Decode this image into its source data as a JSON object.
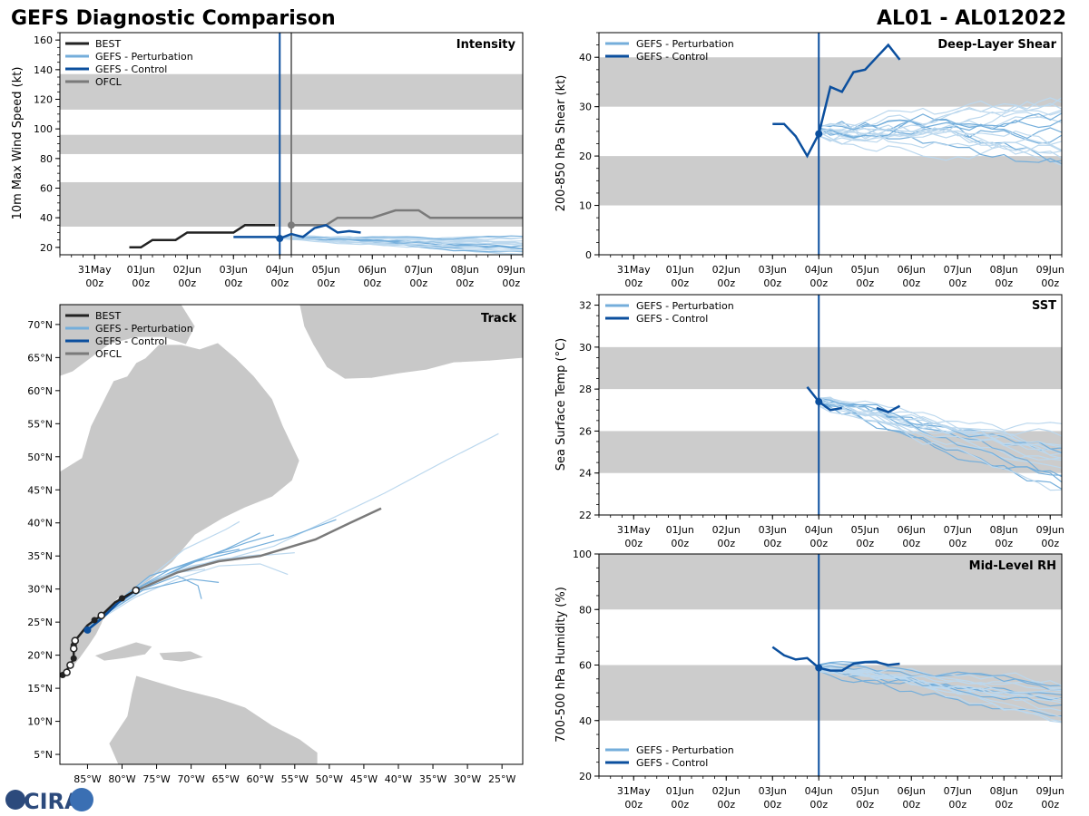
{
  "header": {
    "title_left": "GEFS Diagnostic Comparison",
    "title_right": "AL01 - AL012022"
  },
  "logo": {
    "text": "CIRA"
  },
  "colors": {
    "best": "#222222",
    "pert": "#74aedb",
    "pert_light": "#bcd8ee",
    "control": "#0b4f9e",
    "ofcl": "#7a7a7a",
    "band": "#cccccc",
    "land": "#c8c8c8"
  },
  "legend_labels": {
    "best": "BEST",
    "pert": "GEFS - Perturbation",
    "control": "GEFS - Control",
    "ofcl": "OFCL"
  },
  "time_ticks": [
    {
      "t": 0,
      "day": "31May",
      "hour": "00z"
    },
    {
      "t": 1,
      "day": "01Jun",
      "hour": "00z"
    },
    {
      "t": 2,
      "day": "02Jun",
      "hour": "00z"
    },
    {
      "t": 3,
      "day": "03Jun",
      "hour": "00z"
    },
    {
      "t": 4,
      "day": "04Jun",
      "hour": "00z"
    },
    {
      "t": 5,
      "day": "05Jun",
      "hour": "00z"
    },
    {
      "t": 6,
      "day": "06Jun",
      "hour": "00z"
    },
    {
      "t": 7,
      "day": "07Jun",
      "hour": "00z"
    },
    {
      "t": 8,
      "day": "08Jun",
      "hour": "00z"
    },
    {
      "t": 9,
      "day": "09Jun",
      "hour": "00z"
    }
  ],
  "chart_data": [
    {
      "id": "intensity",
      "type": "line",
      "title": "Intensity",
      "ylabel": "10m Max Wind Speed (kt)",
      "xlim": [
        -0.75,
        9.25
      ],
      "ylim": [
        15,
        165
      ],
      "yticks": [
        20,
        40,
        60,
        80,
        100,
        120,
        140,
        160
      ],
      "bands": [
        [
          34,
          64
        ],
        [
          83,
          96
        ],
        [
          113,
          137
        ]
      ],
      "init_time": 4.0,
      "ofcl_time": 4.25,
      "series": [
        {
          "name": "BEST",
          "role": "best",
          "points": [
            [
              0.75,
              20
            ],
            [
              1,
              20
            ],
            [
              1.25,
              25
            ],
            [
              1.5,
              25
            ],
            [
              1.75,
              25
            ],
            [
              2,
              30
            ],
            [
              2.25,
              30
            ],
            [
              2.5,
              30
            ],
            [
              2.75,
              30
            ],
            [
              3,
              30
            ],
            [
              3.25,
              35
            ],
            [
              3.5,
              35
            ],
            [
              3.75,
              35
            ],
            [
              3.9,
              35
            ]
          ]
        },
        {
          "name": "OFCL",
          "role": "ofcl",
          "points": [
            [
              4.25,
              35
            ],
            [
              4.5,
              35
            ],
            [
              5,
              35
            ],
            [
              5.25,
              40
            ],
            [
              6,
              40
            ],
            [
              6.5,
              45
            ],
            [
              7,
              45
            ],
            [
              7.25,
              40
            ],
            [
              8,
              40
            ],
            [
              9.25,
              40
            ]
          ]
        },
        {
          "name": "GEFS - Control",
          "role": "control",
          "points": [
            [
              3,
              27
            ],
            [
              3.5,
              27
            ],
            [
              3.9,
              27
            ],
            [
              4,
              26
            ],
            [
              4.25,
              29
            ],
            [
              4.5,
              27
            ],
            [
              4.75,
              33
            ],
            [
              5,
              35
            ],
            [
              5.25,
              30
            ],
            [
              5.5,
              31
            ],
            [
              5.75,
              30
            ]
          ]
        },
        {
          "name": "GEFS - Perturbation",
          "role": "pert_ensemble",
          "members": 18,
          "t_start": 4.0,
          "t_end": 9.25,
          "start": 27,
          "end": 22,
          "spread": 6
        }
      ],
      "markers": [
        {
          "t": 4.0,
          "v": 26,
          "role": "control"
        },
        {
          "t": 4.25,
          "v": 35,
          "role": "ofcl"
        }
      ]
    },
    {
      "id": "shear",
      "type": "line",
      "title": "Deep-Layer Shear",
      "ylabel": "200-850 hPa Shear (kt)",
      "xlim": [
        -0.75,
        9.25
      ],
      "ylim": [
        0,
        45
      ],
      "yticks": [
        0,
        10,
        20,
        30,
        40
      ],
      "bands": [
        [
          10,
          20
        ],
        [
          30,
          40
        ]
      ],
      "init_time": 4.0,
      "series": [
        {
          "name": "GEFS - Control",
          "role": "control",
          "points": [
            [
              3,
              26.5
            ],
            [
              3.25,
              26.5
            ],
            [
              3.5,
              24
            ],
            [
              3.75,
              20
            ],
            [
              4,
              24.5
            ],
            [
              4.25,
              34
            ],
            [
              4.5,
              33
            ],
            [
              4.75,
              37
            ],
            [
              5,
              37.5
            ],
            [
              5.25,
              40
            ],
            [
              5.5,
              42.5
            ],
            [
              5.75,
              39.5
            ]
          ]
        },
        {
          "name": "GEFS - Perturbation",
          "role": "pert_ensemble",
          "members": 18,
          "t_start": 4.0,
          "t_end": 9.25,
          "start": 25,
          "end": 24,
          "spread": 9
        }
      ],
      "markers": [
        {
          "t": 4.0,
          "v": 24.5,
          "role": "control"
        }
      ]
    },
    {
      "id": "sst",
      "type": "line",
      "title": "SST",
      "ylabel": "Sea Surface Temp (°C)",
      "xlim": [
        -0.75,
        9.25
      ],
      "ylim": [
        22,
        32.5
      ],
      "yticks": [
        22,
        24,
        26,
        28,
        30,
        32
      ],
      "bands": [
        [
          24,
          26
        ],
        [
          28,
          30
        ]
      ],
      "init_time": 4.0,
      "series": [
        {
          "name": "GEFS - Control",
          "role": "control",
          "points": [
            [
              3.75,
              28.1
            ],
            [
              4,
              27.4
            ],
            [
              4.25,
              27
            ],
            [
              4.5,
              27.1
            ]
          ]
        },
        {
          "name": "GEFS - Control",
          "role": "control",
          "points": [
            [
              5.25,
              27.1
            ],
            [
              5.5,
              26.9
            ],
            [
              5.75,
              27.2
            ]
          ]
        },
        {
          "name": "GEFS - Perturbation",
          "role": "pert_ensemble",
          "members": 18,
          "t_start": 4.0,
          "t_end": 9.25,
          "start": 27.4,
          "end": 24.6,
          "spread": 1.6
        }
      ],
      "markers": [
        {
          "t": 4.0,
          "v": 27.4,
          "role": "control"
        }
      ]
    },
    {
      "id": "rh",
      "type": "line",
      "title": "Mid-Level RH",
      "ylabel": "700-500 hPa Humidity (%)",
      "xlim": [
        -0.75,
        9.25
      ],
      "ylim": [
        20,
        100
      ],
      "yticks": [
        20,
        40,
        60,
        80,
        100
      ],
      "bands": [
        [
          40,
          60
        ],
        [
          80,
          100
        ]
      ],
      "init_time": 4.0,
      "series": [
        {
          "name": "GEFS - Control",
          "role": "control",
          "points": [
            [
              3,
              66.5
            ],
            [
              3.25,
              63.5
            ],
            [
              3.5,
              62
            ],
            [
              3.75,
              62.5
            ],
            [
              4,
              59
            ],
            [
              4.25,
              58
            ],
            [
              4.5,
              58
            ],
            [
              4.75,
              60.5
            ],
            [
              5,
              61
            ],
            [
              5.25,
              61
            ],
            [
              5.5,
              60
            ],
            [
              5.75,
              60.5
            ]
          ]
        },
        {
          "name": "GEFS - Perturbation",
          "role": "pert_ensemble",
          "members": 18,
          "t_start": 4.0,
          "t_end": 9.25,
          "start": 59,
          "end": 46,
          "spread": 9
        }
      ],
      "markers": [
        {
          "t": 4.0,
          "v": 59,
          "role": "control"
        }
      ]
    },
    {
      "id": "track",
      "type": "scatter",
      "title": "Track",
      "xlim": [
        -89,
        -22
      ],
      "ylim": [
        3.5,
        73
      ],
      "xticks": [
        -85,
        -80,
        -75,
        -70,
        -65,
        -60,
        -55,
        -50,
        -45,
        -40,
        -35,
        -30,
        -25
      ],
      "xtick_labels": [
        "85°W",
        "80°W",
        "75°W",
        "70°W",
        "65°W",
        "60°W",
        "55°W",
        "50°W",
        "45°W",
        "40°W",
        "35°W",
        "30°W",
        "25°W"
      ],
      "yticks": [
        5,
        10,
        15,
        20,
        25,
        30,
        35,
        40,
        45,
        50,
        55,
        60,
        65,
        70
      ],
      "ytick_labels": [
        "5°N",
        "10°N",
        "15°N",
        "20°N",
        "25°N",
        "30°N",
        "35°N",
        "40°N",
        "45°N",
        "50°N",
        "55°N",
        "60°N",
        "65°N",
        "70°N"
      ],
      "best_track": [
        [
          -88.5,
          17.2
        ],
        [
          -88.2,
          17.5
        ],
        [
          -87.5,
          18.5
        ],
        [
          -87.0,
          19.5
        ],
        [
          -87.0,
          20.5
        ],
        [
          -87.0,
          21.5
        ],
        [
          -86.8,
          22.2
        ],
        [
          -85.0,
          24.5
        ],
        [
          -84.0,
          25.3
        ],
        [
          -83.0,
          26.0
        ],
        [
          -81.0,
          28.0
        ],
        [
          -80.0,
          28.6
        ],
        [
          -78.0,
          29.8
        ]
      ],
      "best_open_points": [
        [
          -88.0,
          17.4
        ],
        [
          -87.5,
          18.5
        ],
        [
          -87.0,
          21.0
        ],
        [
          -86.8,
          22.2
        ],
        [
          -83.0,
          26.0
        ],
        [
          -78.0,
          29.8
        ]
      ],
      "best_filled_points": [
        [
          -88.6,
          17.0
        ],
        [
          -87.0,
          19.5
        ],
        [
          -87.0,
          21.5
        ],
        [
          -84.0,
          25.3
        ],
        [
          -80.0,
          28.6
        ]
      ],
      "ofcl_track": [
        [
          -80.5,
          28.4
        ],
        [
          -77,
          30.2
        ],
        [
          -72,
          32.5
        ],
        [
          -66,
          34.2
        ],
        [
          -60,
          35.0
        ],
        [
          -52,
          37.5
        ],
        [
          -47,
          40.0
        ],
        [
          -42.5,
          42.2
        ]
      ],
      "control_track": [
        [
          -85.0,
          23.8
        ],
        [
          -83.0,
          25.5
        ],
        [
          -80.5,
          28.0
        ],
        [
          -77.5,
          30.2
        ]
      ],
      "control_marker": [
        -85.0,
        23.8
      ],
      "pert_tracks": [
        [
          [
            -85,
            24
          ],
          [
            -82,
            26.5
          ],
          [
            -78,
            29.5
          ],
          [
            -72,
            32.8
          ],
          [
            -65,
            34.5
          ],
          [
            -58,
            36.5
          ],
          [
            -50,
            40.5
          ],
          [
            -42,
            44.5
          ],
          [
            -33,
            49.5
          ],
          [
            -25.5,
            53.5
          ]
        ],
        [
          [
            -85,
            24
          ],
          [
            -81,
            27.5
          ],
          [
            -75,
            31.5
          ],
          [
            -68,
            34.8
          ],
          [
            -62,
            37.0
          ],
          [
            -58,
            38.2
          ]
        ],
        [
          [
            -85,
            24
          ],
          [
            -82,
            26.5
          ],
          [
            -76,
            31
          ],
          [
            -70,
            33.5
          ],
          [
            -63,
            34.8
          ],
          [
            -55,
            35.5
          ]
        ],
        [
          [
            -85,
            24
          ],
          [
            -82,
            26.8
          ],
          [
            -77,
            30.5
          ],
          [
            -70,
            34.0
          ],
          [
            -64,
            35.5
          ],
          [
            -56,
            37.8
          ],
          [
            -49,
            40.5
          ]
        ],
        [
          [
            -85,
            24
          ],
          [
            -82,
            26.2
          ],
          [
            -78,
            28.8
          ],
          [
            -72,
            31.5
          ],
          [
            -66,
            33.5
          ],
          [
            -60,
            33.8
          ],
          [
            -56,
            32.2
          ]
        ],
        [
          [
            -85,
            24
          ],
          [
            -82,
            26.5
          ],
          [
            -77,
            30.0
          ],
          [
            -72,
            32.0
          ],
          [
            -69,
            30.5
          ],
          [
            -68.5,
            28.5
          ]
        ],
        [
          [
            -85,
            24
          ],
          [
            -82,
            26.8
          ],
          [
            -76,
            31.8
          ],
          [
            -71,
            36.0
          ],
          [
            -65,
            39.0
          ],
          [
            -63,
            40.2
          ]
        ],
        [
          [
            -85,
            24
          ],
          [
            -82,
            27.0
          ],
          [
            -76,
            32.0
          ],
          [
            -70,
            34.0
          ],
          [
            -65,
            36.0
          ],
          [
            -60,
            38.5
          ]
        ],
        [
          [
            -85,
            24
          ],
          [
            -81,
            27.2
          ],
          [
            -74,
            32.0
          ],
          [
            -66,
            34.5
          ],
          [
            -60,
            35.2
          ]
        ],
        [
          [
            -85,
            24
          ],
          [
            -82,
            26.5
          ],
          [
            -77,
            29.8
          ],
          [
            -70,
            31.5
          ],
          [
            -66,
            31.0
          ]
        ],
        [
          [
            -85,
            24
          ],
          [
            -82,
            26.6
          ],
          [
            -77,
            30.2
          ],
          [
            -72,
            32.5
          ],
          [
            -68,
            33.0
          ]
        ],
        [
          [
            -85,
            24
          ],
          [
            -82,
            26.7
          ],
          [
            -78,
            30.0
          ],
          [
            -73,
            33.0
          ],
          [
            -67,
            35.2
          ],
          [
            -63,
            36.0
          ]
        ]
      ]
    }
  ]
}
